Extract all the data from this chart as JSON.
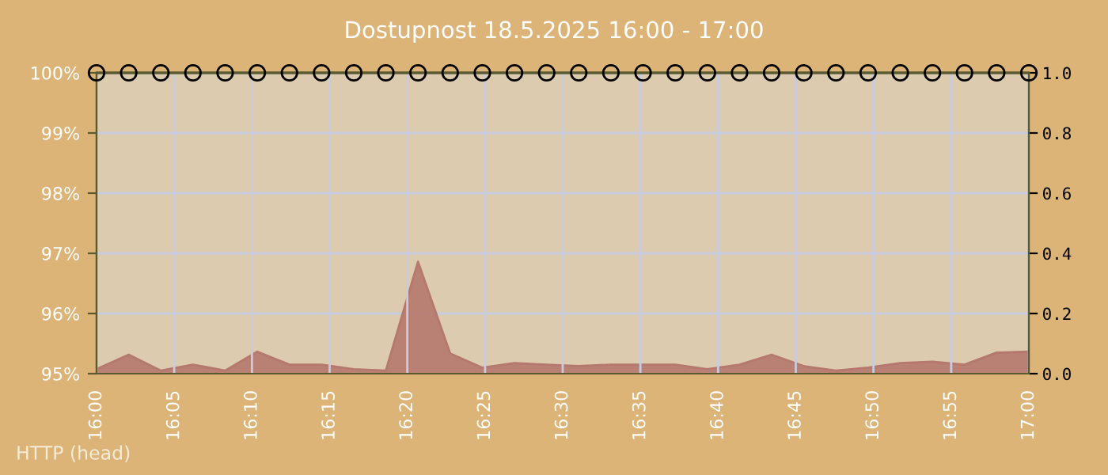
{
  "chart_data": {
    "type": "line",
    "title": "Dostupnost 18.5.2025 16:00 - 17:00",
    "x": [
      16.0,
      16.0345,
      16.069,
      16.1034,
      16.1379,
      16.1724,
      16.2069,
      16.2414,
      16.2759,
      16.3103,
      16.3448,
      16.3793,
      16.4138,
      16.4483,
      16.4828,
      16.5172,
      16.5517,
      16.5862,
      16.6207,
      16.6552,
      16.6897,
      16.7241,
      16.7586,
      16.7931,
      16.8276,
      16.8621,
      16.8966,
      16.931,
      16.9655,
      17.0
    ],
    "series": [
      {
        "axis": "y",
        "color": "#5a5a30",
        "marker": "circle",
        "values": [
          100,
          100,
          100,
          100,
          100,
          100,
          100,
          100,
          100,
          100,
          100,
          100,
          100,
          100,
          100,
          100,
          100,
          100,
          100,
          100,
          100,
          100,
          100,
          100,
          100,
          100,
          100,
          100,
          100,
          100
        ]
      },
      {
        "type": "area",
        "axis": "y2",
        "color": "#b5786e",
        "values": [
          0.015,
          0.063,
          0.01,
          0.03,
          0.01,
          0.073,
          0.03,
          0.03,
          0.015,
          0.01,
          0.372,
          0.067,
          0.02,
          0.035,
          0.03,
          0.025,
          0.03,
          0.03,
          0.03,
          0.015,
          0.03,
          0.063,
          0.025,
          0.01,
          0.02,
          0.035,
          0.04,
          0.03,
          0.07,
          0.073
        ]
      }
    ],
    "xlim": [
      16,
      17
    ],
    "xticks": [
      {
        "value": 16.0,
        "label": "16:00"
      },
      {
        "value": 16.0833,
        "label": "16:05"
      },
      {
        "value": 16.1667,
        "label": "16:10"
      },
      {
        "value": 16.25,
        "label": "16:15"
      },
      {
        "value": 16.3333,
        "label": "16:20"
      },
      {
        "value": 16.4167,
        "label": "16:25"
      },
      {
        "value": 16.5,
        "label": "16:30"
      },
      {
        "value": 16.5833,
        "label": "16:35"
      },
      {
        "value": 16.6667,
        "label": "16:40"
      },
      {
        "value": 16.75,
        "label": "16:45"
      },
      {
        "value": 16.8333,
        "label": "16:50"
      },
      {
        "value": 16.9167,
        "label": "16:55"
      },
      {
        "value": 17.0,
        "label": "17:00"
      }
    ],
    "ylim": [
      95,
      100
    ],
    "yticks": [
      {
        "value": 95,
        "label": "95%"
      },
      {
        "value": 96,
        "label": "96%"
      },
      {
        "value": 97,
        "label": "97%"
      },
      {
        "value": 98,
        "label": "98%"
      },
      {
        "value": 99,
        "label": "99%"
      },
      {
        "value": 100,
        "label": "100%"
      }
    ],
    "y2lim": [
      0,
      1.0
    ],
    "y2ticks": [
      {
        "value": 0,
        "label": "0.0"
      },
      {
        "value": 0.2,
        "label": "0.2"
      },
      {
        "value": 0.4,
        "label": "0.4"
      },
      {
        "value": 0.6,
        "label": "0.6"
      },
      {
        "value": 0.8,
        "label": "0.8"
      },
      {
        "value": 1.0,
        "label": "1.0"
      }
    ],
    "grid": true,
    "annotations": [
      "HTTP (head)"
    ]
  }
}
